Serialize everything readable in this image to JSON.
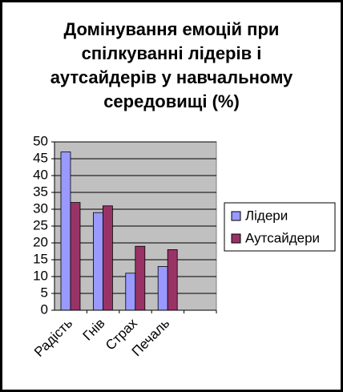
{
  "chart_data": {
    "type": "bar",
    "title": "Домінування емоцій при спілкуванні лідерів і аутсайдерів у навчальному середовищі (%)",
    "categories": [
      "Радість",
      "Гнів",
      "Страх",
      "Печаль",
      null
    ],
    "series": [
      {
        "name": "Лідери",
        "color": "#9999ff",
        "values": [
          47,
          29,
          11,
          13,
          null
        ]
      },
      {
        "name": "Аутсайдери",
        "color": "#993366",
        "values": [
          32,
          31,
          19,
          18,
          null
        ]
      }
    ],
    "ylim": [
      0,
      50
    ],
    "yticks": [
      0,
      5,
      10,
      15,
      20,
      25,
      30,
      35,
      40,
      45,
      50
    ],
    "grid": true,
    "legend": "right"
  }
}
